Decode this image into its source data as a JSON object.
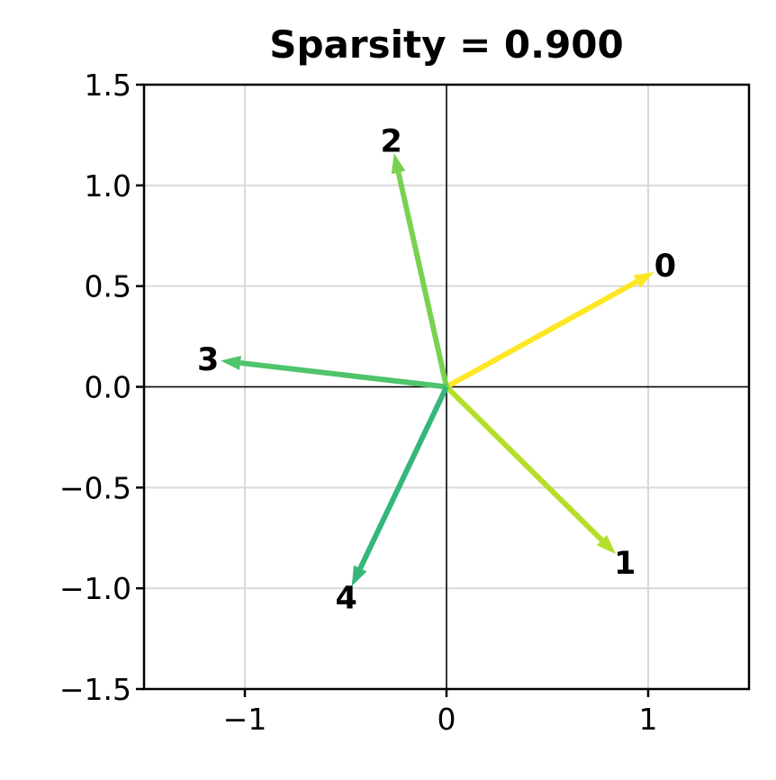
{
  "chart_data": {
    "type": "quiver",
    "title": "Sparsity = 0.900",
    "xlabel": "",
    "ylabel": "",
    "xlim": [
      -1.5,
      1.5
    ],
    "ylim": [
      -1.5,
      1.5
    ],
    "grid": true,
    "zero_axes": true,
    "x_ticks": [
      {
        "value": -1,
        "label": "−1"
      },
      {
        "value": 0,
        "label": "0"
      },
      {
        "value": 1,
        "label": "1"
      }
    ],
    "y_ticks": [
      {
        "value": -1.5,
        "label": "−1.5"
      },
      {
        "value": -1.0,
        "label": "−1.0"
      },
      {
        "value": -0.5,
        "label": "−0.5"
      },
      {
        "value": 0.0,
        "label": "0.0"
      },
      {
        "value": 0.5,
        "label": "0.5"
      },
      {
        "value": 1.0,
        "label": "1.0"
      },
      {
        "value": 1.5,
        "label": "1.5"
      }
    ],
    "vectors": [
      {
        "label": "0",
        "x": 1.03,
        "y": 0.57,
        "color": "#fde725"
      },
      {
        "label": "1",
        "x": 0.84,
        "y": -0.83,
        "color": "#b5de2b"
      },
      {
        "label": "2",
        "x": -0.26,
        "y": 1.16,
        "color": "#7ad151"
      },
      {
        "label": "3",
        "x": -1.12,
        "y": 0.13,
        "color": "#4fc46a"
      },
      {
        "label": "4",
        "x": -0.47,
        "y": -0.99,
        "color": "#35b779"
      }
    ]
  }
}
